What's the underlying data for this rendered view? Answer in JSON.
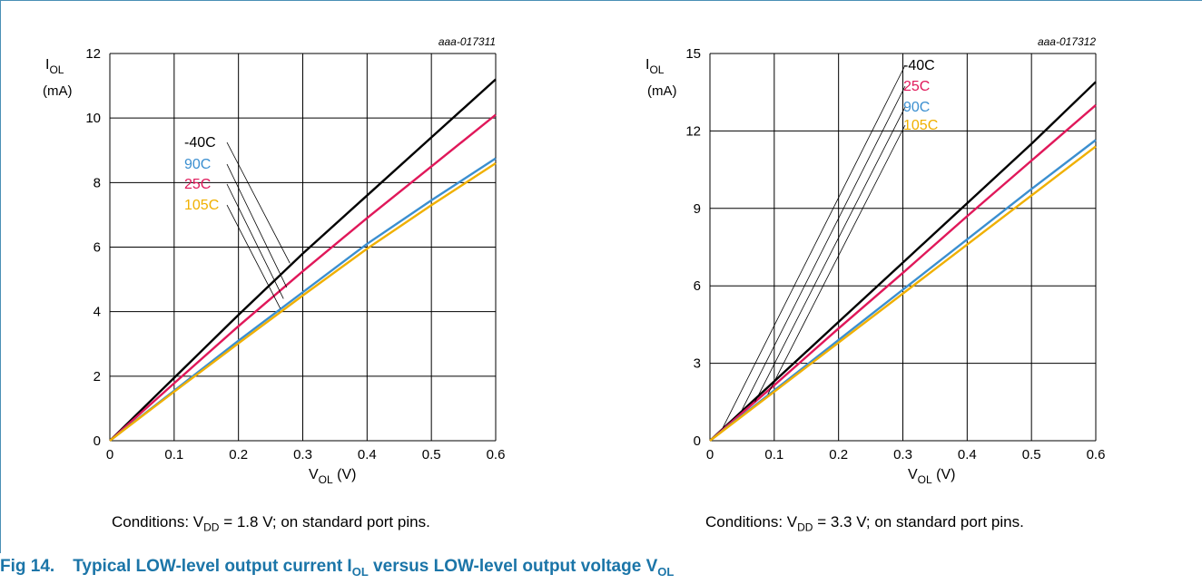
{
  "figure": {
    "number": "Fig 14.",
    "caption_parts": [
      "Typical LOW-level output current I",
      "OL",
      " versus LOW-level output voltage V",
      "OL"
    ]
  },
  "colors": {
    "-40C": "#000000",
    "25C": "#e0185a",
    "90C": "#3b8fd0",
    "105C": "#f0b000",
    "caption": "#1b75a8"
  },
  "chart_data": [
    {
      "type": "line",
      "id": "aaa-017311",
      "ylabel_main": "I",
      "ylabel_sub": "OL",
      "ylabel_unit": "(mA)",
      "xlabel_main": "V",
      "xlabel_sub": "OL",
      "xlabel_unit": " (V)",
      "xlim": [
        0,
        0.6
      ],
      "ylim": [
        0,
        12
      ],
      "xticks": [
        "0",
        "0.1",
        "0.2",
        "0.3",
        "0.4",
        "0.5",
        "0.6"
      ],
      "yticks": [
        "0",
        "2",
        "4",
        "6",
        "8",
        "10",
        "12"
      ],
      "grid": true,
      "legend_order": [
        "-40C",
        "90C",
        "25C",
        "105C"
      ],
      "legend_targets": {
        "-40C": [
          0.28,
          5.5
        ],
        "90C": [
          0.275,
          4.75
        ],
        "25C": [
          0.27,
          4.4
        ],
        "105C": [
          0.265,
          4.1
        ]
      },
      "series": [
        {
          "name": "-40C",
          "x": [
            0,
            0.1,
            0.2,
            0.3,
            0.4,
            0.5,
            0.6
          ],
          "y": [
            0,
            1.95,
            3.9,
            5.8,
            7.6,
            9.4,
            11.2
          ]
        },
        {
          "name": "25C",
          "x": [
            0,
            0.1,
            0.2,
            0.3,
            0.4,
            0.5,
            0.6
          ],
          "y": [
            0,
            1.78,
            3.55,
            5.25,
            6.9,
            8.5,
            10.1
          ]
        },
        {
          "name": "90C",
          "x": [
            0,
            0.1,
            0.2,
            0.3,
            0.4,
            0.5,
            0.6
          ],
          "y": [
            0,
            1.55,
            3.1,
            4.6,
            6.1,
            7.45,
            8.75
          ]
        },
        {
          "name": "105C",
          "x": [
            0,
            0.1,
            0.2,
            0.3,
            0.4,
            0.5,
            0.6
          ],
          "y": [
            0,
            1.52,
            3.02,
            4.5,
            5.95,
            7.3,
            8.6
          ]
        }
      ],
      "conditions": {
        "prefix": "Conditions: V",
        "sub": "DD",
        "suffix": " = 1.8 V; on standard port pins."
      }
    },
    {
      "type": "line",
      "id": "aaa-017312",
      "ylabel_main": "I",
      "ylabel_sub": "OL",
      "ylabel_unit": "(mA)",
      "xlabel_main": "V",
      "xlabel_sub": "OL",
      "xlabel_unit": " (V)",
      "xlim": [
        0,
        0.6
      ],
      "ylim": [
        0,
        15
      ],
      "xticks": [
        "0",
        "0.1",
        "0.2",
        "0.3",
        "0.4",
        "0.5",
        "0.6"
      ],
      "yticks": [
        "0",
        "3",
        "6",
        "9",
        "12",
        "15"
      ],
      "grid": true,
      "legend_order": [
        "-40C",
        "25C",
        "90C",
        "105C"
      ],
      "legend_targets": {
        "-40C": [
          0.02,
          0.5
        ],
        "25C": [
          0.05,
          1.2
        ],
        "90C": [
          0.07,
          1.5
        ],
        "105C": [
          0.09,
          1.8
        ]
      },
      "series": [
        {
          "name": "-40C",
          "x": [
            0,
            0.1,
            0.2,
            0.3,
            0.4,
            0.5,
            0.6
          ],
          "y": [
            0,
            2.3,
            4.6,
            6.9,
            9.2,
            11.5,
            13.9
          ]
        },
        {
          "name": "25C",
          "x": [
            0,
            0.1,
            0.2,
            0.3,
            0.4,
            0.5,
            0.6
          ],
          "y": [
            0,
            2.15,
            4.35,
            6.5,
            8.7,
            10.85,
            13.0
          ]
        },
        {
          "name": "90C",
          "x": [
            0,
            0.1,
            0.2,
            0.3,
            0.4,
            0.5,
            0.6
          ],
          "y": [
            0,
            1.95,
            3.9,
            5.85,
            7.8,
            9.75,
            11.65
          ]
        },
        {
          "name": "105C",
          "x": [
            0,
            0.1,
            0.2,
            0.3,
            0.4,
            0.5,
            0.6
          ],
          "y": [
            0,
            1.9,
            3.8,
            5.7,
            7.6,
            9.5,
            11.4
          ]
        }
      ],
      "conditions": {
        "prefix": "Conditions: V",
        "sub": "DD",
        "suffix": " = 3.3 V; on standard port pins."
      }
    }
  ]
}
